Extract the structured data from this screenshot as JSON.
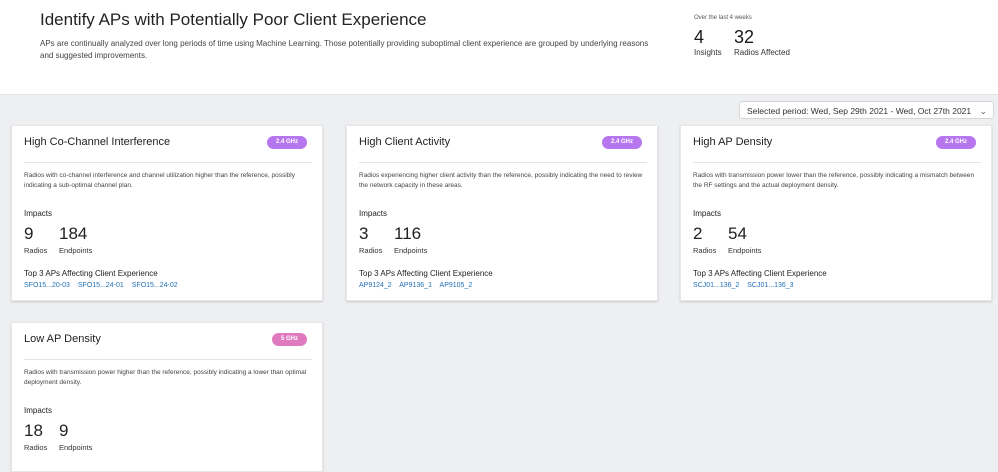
{
  "header": {
    "title": "Identify APs with Potentially Poor Client Experience",
    "description": "APs are continually analyzed over long periods of time using Machine Learning. Those potentially providing suboptimal client experience are grouped by underlying reasons and suggested improvements."
  },
  "summary": {
    "caption": "Over the last 4 weeks",
    "insights_value": "4",
    "insights_label": "Insights",
    "radios_value": "32",
    "radios_label": "Radios Affected"
  },
  "period": {
    "label": "Selected period: Wed, Sep 29th 2021 - Wed, Oct 27th 2021",
    "chevron_icon": "chevron-down-icon"
  },
  "colors": {
    "badge_24": "#b676ee",
    "badge_5": "#e07abf",
    "link": "#1f6fb5"
  },
  "cards": [
    {
      "title": "High Co-Channel Interference",
      "band": "2.4 GHz",
      "description": "Radios with co-channel interference and channel utilization higher than the reference, possibly indicating a sub-optimal channel plan.",
      "impacts_label": "Impacts",
      "radios_value": "9",
      "radios_label": "Radios",
      "endpoints_value": "184",
      "endpoints_label": "Endpoints",
      "top3_label": "Top 3 APs Affecting Client Experience",
      "aps": [
        "SFO15...20-03",
        "SFO15...24-01",
        "SFO15...24-02"
      ]
    },
    {
      "title": "High Client Activity",
      "band": "2.4 GHz",
      "description": "Radios experiencing higher client activity than the reference, possibly indicating the need to review the network capacity in these areas.",
      "impacts_label": "Impacts",
      "radios_value": "3",
      "radios_label": "Radios",
      "endpoints_value": "116",
      "endpoints_label": "Endpoints",
      "top3_label": "Top 3 APs Affecting Client Experience",
      "aps": [
        "AP9124_2",
        "AP9136_1",
        "AP9105_2"
      ]
    },
    {
      "title": "High AP Density",
      "band": "2.4 GHz",
      "description": "Radios with transmission power lower than the reference, possibly indicating a mismatch between the RF settings and the actual deployment density.",
      "impacts_label": "Impacts",
      "radios_value": "2",
      "radios_label": "Radios",
      "endpoints_value": "54",
      "endpoints_label": "Endpoints",
      "top3_label": "Top 3 APs Affecting Client Experience",
      "aps": [
        "SCJ01...136_2",
        "SCJ01...136_3"
      ]
    },
    {
      "title": "Low AP Density",
      "band": "5 GHz",
      "description": "Radios with transmission power higher than the reference, possibly indicating a lower than optimal deployment density.",
      "impacts_label": "Impacts",
      "radios_value": "18",
      "radios_label": "Radios",
      "endpoints_value": "9",
      "endpoints_label": "Endpoints"
    }
  ]
}
